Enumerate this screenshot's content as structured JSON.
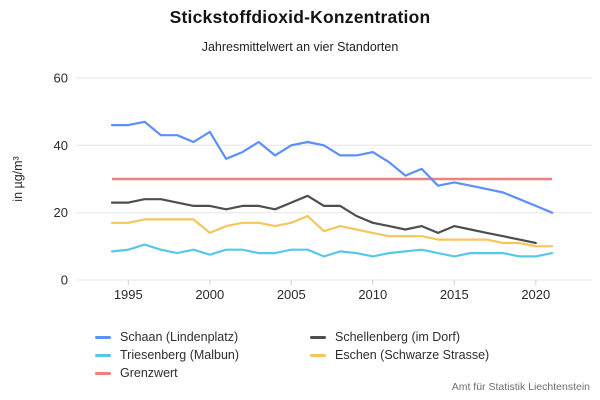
{
  "title": "Stickstoffdioxid-Konzentration",
  "subtitle": "Jahresmittelwert an vier Standorten",
  "source": "Amt für Statistik Liechtenstein",
  "chart_data": {
    "type": "line",
    "title": "Stickstoffdioxid-Konzentration",
    "subtitle": "Jahresmittelwert an vier Standorten",
    "ylabel": "in µg/m³",
    "xlabel": "",
    "ylim": [
      0,
      60
    ],
    "yticks": [
      0,
      20,
      40,
      60
    ],
    "xticks": [
      1995,
      2000,
      2005,
      2010,
      2015,
      2020
    ],
    "grid": "horizontal",
    "legend_position": "bottom",
    "x": [
      1994,
      1995,
      1996,
      1997,
      1998,
      1999,
      2000,
      2001,
      2002,
      2003,
      2004,
      2005,
      2006,
      2007,
      2008,
      2009,
      2010,
      2011,
      2012,
      2013,
      2014,
      2015,
      2016,
      2017,
      2018,
      2019,
      2020,
      2021
    ],
    "series": [
      {
        "name": "Schaan (Lindenplatz)",
        "color": "#5B8FF9",
        "values": [
          46,
          46,
          47,
          43,
          43,
          41,
          44,
          36,
          38,
          41,
          37,
          40,
          41,
          40,
          37,
          37,
          38,
          35,
          31,
          33,
          28,
          29,
          28,
          27,
          26,
          24,
          22,
          20
        ]
      },
      {
        "name": "Schellenberg (im Dorf)",
        "color": "#4E4E4E",
        "values": [
          23,
          23,
          24,
          24,
          23,
          22,
          22,
          21,
          22,
          22,
          21,
          23,
          25,
          22,
          22,
          19,
          17,
          16,
          15,
          16,
          14,
          16,
          15,
          14,
          13,
          12,
          11,
          null
        ]
      },
      {
        "name": "Triesenberg (Malbun)",
        "color": "#58C8EA",
        "values": [
          8.5,
          9,
          10.5,
          9,
          8,
          9,
          7.5,
          9,
          9,
          8,
          8,
          9,
          9,
          7,
          8.5,
          8,
          7,
          8,
          8.5,
          9,
          8,
          7,
          8,
          8,
          8,
          7,
          7,
          8
        ]
      },
      {
        "name": "Eschen (Schwarze Strasse)",
        "color": "#F4C65C",
        "values": [
          17,
          17,
          18,
          18,
          18,
          18,
          14,
          16,
          17,
          17,
          16,
          17,
          19,
          14.5,
          16,
          15,
          14,
          13,
          13,
          13,
          12,
          12,
          12,
          12,
          11,
          11,
          10,
          10
        ]
      },
      {
        "name": "Grenzwert",
        "color": "#F1807C",
        "constant": 30
      }
    ]
  }
}
